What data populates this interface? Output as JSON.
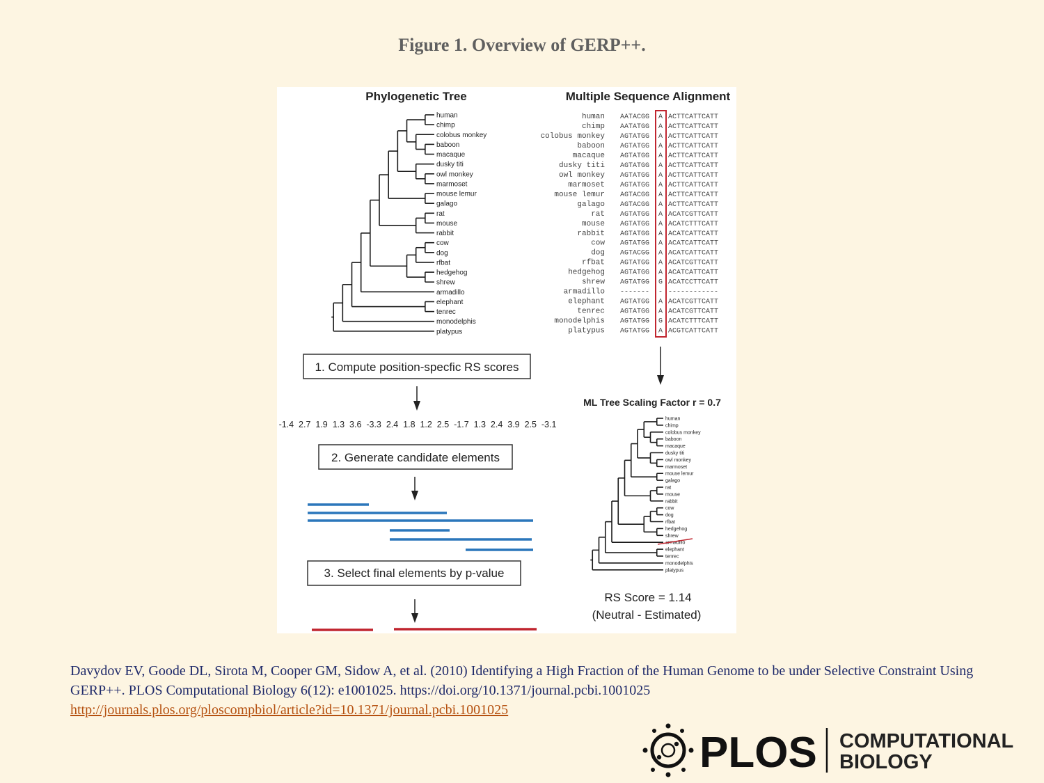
{
  "figure_title": "Figure 1. Overview of GERP++.",
  "panel": {
    "tree_title": "Phylogenetic Tree",
    "msa_title": "Multiple Sequence Alignment",
    "species": [
      "human",
      "chimp",
      "colobus monkey",
      "baboon",
      "macaque",
      "dusky titi",
      "owl monkey",
      "marmoset",
      "mouse lemur",
      "galago",
      "rat",
      "mouse",
      "rabbit",
      "cow",
      "dog",
      "rfbat",
      "hedgehog",
      "shrew",
      "armadillo",
      "elephant",
      "tenrec",
      "monodelphis",
      "platypus"
    ],
    "alignment": [
      {
        "left": "AATACGG",
        "site": "A",
        "right": "ACTTCATTCATT"
      },
      {
        "left": "AATATGG",
        "site": "A",
        "right": "ACTTCATTCATT"
      },
      {
        "left": "AGTATGG",
        "site": "A",
        "right": "ACTTCATTCATT"
      },
      {
        "left": "AGTATGG",
        "site": "A",
        "right": "ACTTCATTCATT"
      },
      {
        "left": "AGTATGG",
        "site": "A",
        "right": "ACTTCATTCATT"
      },
      {
        "left": "AGTATGG",
        "site": "A",
        "right": "ACTTCATTCATT"
      },
      {
        "left": "AGTATGG",
        "site": "A",
        "right": "ACTTCATTCATT"
      },
      {
        "left": "AGTATGG",
        "site": "A",
        "right": "ACTTCATTCATT"
      },
      {
        "left": "AGTACGG",
        "site": "A",
        "right": "ACTTCATTCATT"
      },
      {
        "left": "AGTACGG",
        "site": "A",
        "right": "ACTTCATTCATT"
      },
      {
        "left": "AGTATGG",
        "site": "A",
        "right": "ACATCGTTCATT"
      },
      {
        "left": "AGTATGG",
        "site": "A",
        "right": "ACATCTTTCATT"
      },
      {
        "left": "AGTATGG",
        "site": "A",
        "right": "ACATCATTCATT"
      },
      {
        "left": "AGTATGG",
        "site": "A",
        "right": "ACATCATTCATT"
      },
      {
        "left": "AGTACGG",
        "site": "A",
        "right": "ACATCATTCATT"
      },
      {
        "left": "AGTATGG",
        "site": "A",
        "right": "ACATCGTTCATT"
      },
      {
        "left": "AGTATGG",
        "site": "A",
        "right": "ACATCATTCATT"
      },
      {
        "left": "AGTATGG",
        "site": "G",
        "right": "ACATCCTTCATT"
      },
      {
        "left": "-------",
        "site": "-",
        "right": "------------"
      },
      {
        "left": "AGTATGG",
        "site": "A",
        "right": "ACATCGTTCATT"
      },
      {
        "left": "AGTATGG",
        "site": "A",
        "right": "ACATCGTTCATT"
      },
      {
        "left": "AGTATGG",
        "site": "G",
        "right": "ACATCTTTCATT"
      },
      {
        "left": "AGTATGG",
        "site": "A",
        "right": "ACGTCATTCATT"
      }
    ],
    "step1": "1. Compute position-specfic RS scores",
    "rs_scores": "-1.4  2.7  1.9  1.3  3.6  -3.3  2.4  1.8  1.2  2.5  -1.7  1.3  2.4  3.9  2.5  -3.1",
    "step2": "2. Generate candidate elements",
    "step3": "3. Select final elements by p-value",
    "ml_title": "ML Tree Scaling Factor r = 0.7",
    "rs_score": "RS Score = 1.14",
    "rs_note": "(Neutral - Estimated)",
    "colors": {
      "blue": "#2b77bb",
      "red": "#c0252f",
      "tree": "#1a1a1a"
    }
  },
  "citation": {
    "text": "Davydov EV, Goode DL, Sirota M, Cooper GM, Sidow A, et al. (2010) Identifying a High Fraction of the Human Genome to be under Selective Constraint Using GERP++. PLOS Computational Biology 6(12): e1001025. https://doi.org/10.1371/journal.pcbi.1001025",
    "link": "http://journals.plos.org/ploscompbiol/article?id=10.1371/journal.pcbi.1001025"
  },
  "logo": {
    "plos": "PLOS",
    "line1": "COMPUTATIONAL",
    "line2": "BIOLOGY"
  }
}
